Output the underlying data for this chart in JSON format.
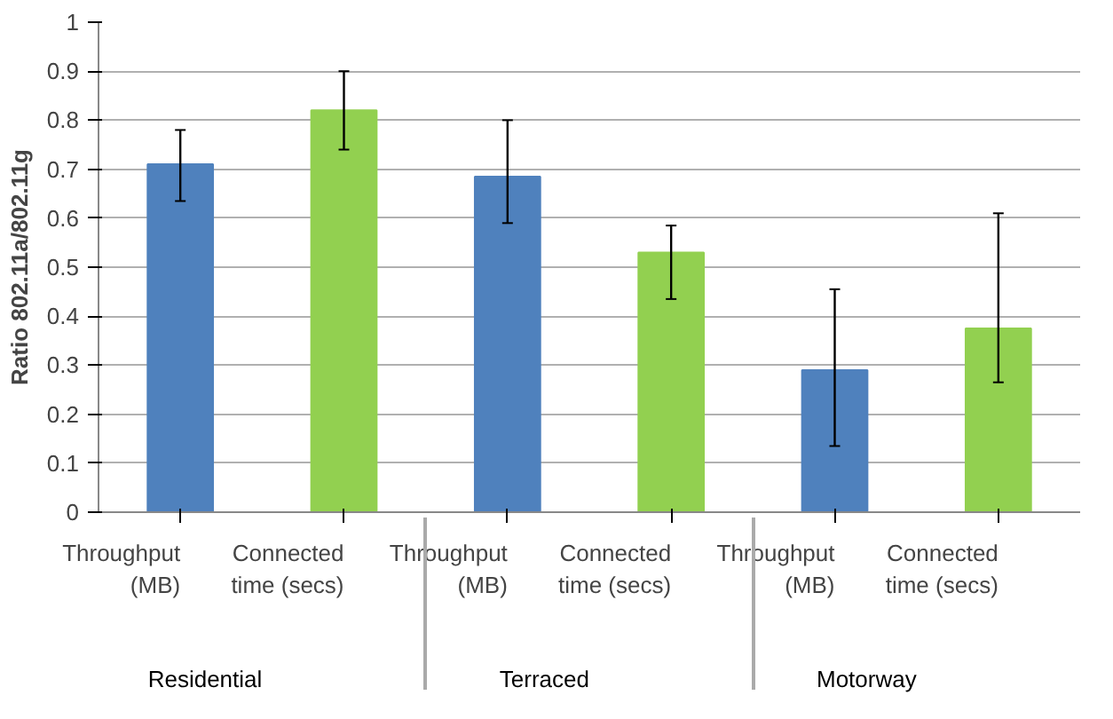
{
  "chart_data": {
    "type": "bar",
    "ylabel": "Ratio 802.11a/802.11g",
    "categories": [
      "Residential",
      "Terraced",
      "Motorway"
    ],
    "series": [
      {
        "name": "Throughput (MB)",
        "color": "#4f81bd",
        "values": [
          0.71,
          0.685,
          0.29
        ],
        "errors": [
          [
            0.635,
            0.78
          ],
          [
            0.59,
            0.8
          ],
          [
            0.135,
            0.455
          ]
        ]
      },
      {
        "name": "Connected time (secs)",
        "color": "#92d050",
        "values": [
          0.82,
          0.53,
          0.375
        ],
        "errors": [
          [
            0.74,
            0.9
          ],
          [
            0.435,
            0.585
          ],
          [
            0.265,
            0.61
          ]
        ]
      }
    ],
    "ylim": [
      0,
      1
    ],
    "yticks": [
      0,
      0.1,
      0.2,
      0.3,
      0.4,
      0.5,
      0.6,
      0.7,
      0.8,
      0.9,
      1
    ],
    "grid": "y"
  }
}
